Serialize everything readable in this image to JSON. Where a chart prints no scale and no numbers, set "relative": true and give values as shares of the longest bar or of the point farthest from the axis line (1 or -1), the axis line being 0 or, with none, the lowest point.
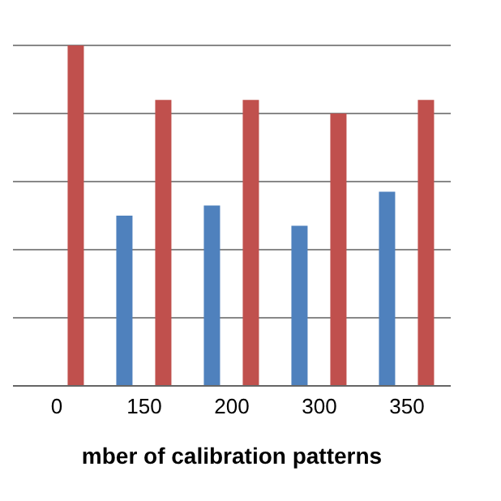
{
  "chart_data": {
    "type": "bar",
    "xlabel": "mber of calibration patterns",
    "categories": [
      "0",
      "150",
      "200",
      "300",
      "350"
    ],
    "relative": true,
    "grid": "y",
    "legend": false,
    "series": [
      {
        "color": "#4f81bd",
        "values": [
          null,
          0.5,
          0.53,
          0.47,
          0.57
        ]
      },
      {
        "color": "#c0504d",
        "values": [
          1,
          0.84,
          0.84,
          0.8,
          0.84
        ]
      }
    ]
  }
}
